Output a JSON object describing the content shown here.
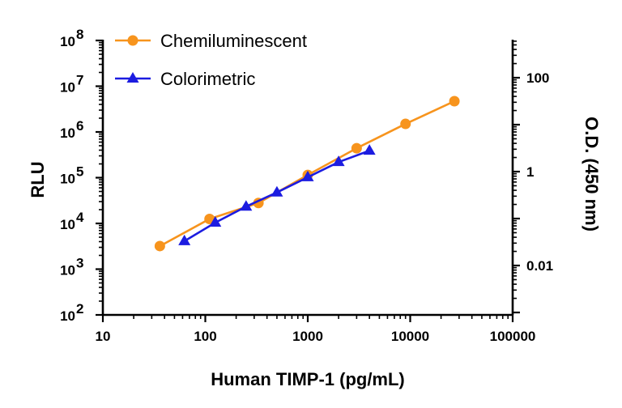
{
  "chart_data": {
    "type": "line",
    "xlabel": "Human TIMP-1 (pg/mL)",
    "ylabel": "RLU",
    "y2label": "O.D. (450 nm)",
    "x_scale": "log",
    "y_scale": "log",
    "y2_scale": "log",
    "xlim": [
      10,
      100000
    ],
    "ylim": [
      100,
      100000000
    ],
    "y2lim": [
      0.001,
      500
    ],
    "x_ticks": [
      "10",
      "100",
      "1000",
      "10000",
      "100000"
    ],
    "y_ticks": [
      {
        "base": "10",
        "exp": "2"
      },
      {
        "base": "10",
        "exp": "3"
      },
      {
        "base": "10",
        "exp": "4"
      },
      {
        "base": "10",
        "exp": "5"
      },
      {
        "base": "10",
        "exp": "6"
      },
      {
        "base": "10",
        "exp": "7"
      },
      {
        "base": "10",
        "exp": "8"
      }
    ],
    "y2_ticks": [
      "0.01",
      "1",
      "100"
    ],
    "legend_position": "top-left",
    "grid": false,
    "series": [
      {
        "name": "Chemiluminescent",
        "axis": "left",
        "marker": "circle",
        "color": "#f7941d",
        "points": [
          {
            "x": 36,
            "y": 3200
          },
          {
            "x": 110,
            "y": 12500
          },
          {
            "x": 330,
            "y": 28000
          },
          {
            "x": 1000,
            "y": 115000
          },
          {
            "x": 3000,
            "y": 440000
          },
          {
            "x": 9000,
            "y": 1500000
          },
          {
            "x": 27000,
            "y": 4700000
          }
        ]
      },
      {
        "name": "Colorimetric",
        "axis": "right",
        "marker": "triangle",
        "color": "#1c1ce0",
        "points": [
          {
            "x": 62.5,
            "y": 0.033
          },
          {
            "x": 125,
            "y": 0.082
          },
          {
            "x": 250,
            "y": 0.18
          },
          {
            "x": 500,
            "y": 0.36
          },
          {
            "x": 1000,
            "y": 0.76
          },
          {
            "x": 2000,
            "y": 1.6
          },
          {
            "x": 4000,
            "y": 2.8
          }
        ]
      }
    ]
  }
}
